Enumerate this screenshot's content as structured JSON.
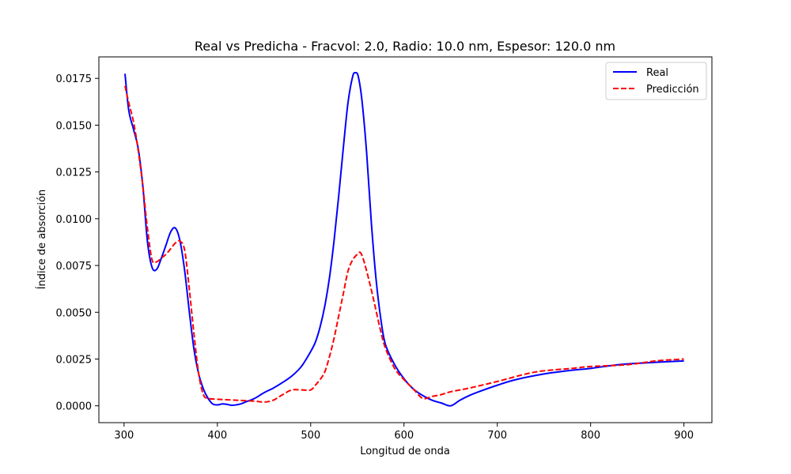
{
  "chart_data": {
    "type": "line",
    "title": "Real vs Predicha - Fracvol: 2.0, Radio: 10.0 nm, Espesor: 120.0 nm",
    "xlabel": "Longitud de onda",
    "ylabel": "Índice de absorción",
    "xlim": [
      273,
      930
    ],
    "ylim": [
      -0.0009,
      0.01865
    ],
    "xticks": [
      300,
      400,
      500,
      600,
      700,
      800,
      900
    ],
    "xtick_labels": [
      "300",
      "400",
      "500",
      "600",
      "700",
      "800",
      "900"
    ],
    "yticks": [
      0,
      0.0025,
      0.005,
      0.0075,
      0.01,
      0.0125,
      0.015,
      0.0175
    ],
    "ytick_labels": [
      "0.0000",
      "0.0025",
      "0.0050",
      "0.0075",
      "0.0100",
      "0.0125",
      "0.0150",
      "0.0175"
    ],
    "grid": false,
    "legend_position": "top-right",
    "series": [
      {
        "name": "Real",
        "color": "#0000ff",
        "style": "solid",
        "x": [
          301,
          305,
          310,
          315,
          320,
          325,
          330,
          335,
          340,
          345,
          350,
          355,
          360,
          365,
          370,
          375,
          380,
          385,
          390,
          395,
          400,
          405,
          410,
          415,
          420,
          425,
          430,
          440,
          450,
          460,
          470,
          480,
          490,
          500,
          505,
          510,
          515,
          520,
          525,
          530,
          535,
          540,
          545,
          548,
          551,
          555,
          560,
          565,
          570,
          575,
          580,
          590,
          600,
          610,
          620,
          630,
          640,
          650,
          660,
          670,
          680,
          700,
          720,
          750,
          780,
          800,
          830,
          860,
          900
        ],
        "y": [
          0.01775,
          0.0158,
          0.0148,
          0.0138,
          0.0118,
          0.0088,
          0.0074,
          0.0073,
          0.0079,
          0.0086,
          0.0093,
          0.0095,
          0.0088,
          0.0072,
          0.005,
          0.003,
          0.0017,
          0.0009,
          0.0004,
          0.0001,
          5e-05,
          0.0001,
          8e-05,
          3e-05,
          5e-05,
          0.0001,
          0.0002,
          0.0004,
          0.0007,
          0.00095,
          0.00125,
          0.0016,
          0.0021,
          0.0029,
          0.0034,
          0.0042,
          0.0053,
          0.0068,
          0.0088,
          0.0112,
          0.0138,
          0.0162,
          0.0176,
          0.0178,
          0.0176,
          0.0163,
          0.0135,
          0.0098,
          0.0068,
          0.0047,
          0.0033,
          0.0022,
          0.00145,
          0.0009,
          0.00055,
          0.0003,
          0.00015,
          0.0,
          0.0003,
          0.00055,
          0.00075,
          0.0011,
          0.0014,
          0.0017,
          0.0019,
          0.002,
          0.0022,
          0.0023,
          0.0024
        ]
      },
      {
        "name": "Predicción",
        "color": "#ff0000",
        "style": "dashed",
        "x": [
          301,
          305,
          310,
          315,
          320,
          325,
          330,
          335,
          340,
          345,
          350,
          355,
          360,
          365,
          370,
          375,
          380,
          385,
          390,
          400,
          420,
          440,
          450,
          460,
          470,
          480,
          490,
          500,
          505,
          510,
          515,
          520,
          525,
          530,
          535,
          540,
          545,
          550,
          553,
          556,
          560,
          565,
          570,
          575,
          580,
          590,
          600,
          610,
          620,
          630,
          640,
          650,
          670,
          700,
          740,
          780,
          800,
          840,
          870,
          900
        ],
        "y": [
          0.0171,
          0.0162,
          0.0152,
          0.0137,
          0.0118,
          0.0095,
          0.0078,
          0.0077,
          0.0079,
          0.0081,
          0.0084,
          0.0087,
          0.0088,
          0.0083,
          0.0062,
          0.0038,
          0.0017,
          0.0006,
          0.0004,
          0.00035,
          0.0003,
          0.00025,
          0.0002,
          0.0003,
          0.0006,
          0.00085,
          0.00085,
          0.00085,
          0.0011,
          0.0014,
          0.0018,
          0.0026,
          0.0036,
          0.0048,
          0.006,
          0.0072,
          0.0078,
          0.0081,
          0.0082,
          0.0079,
          0.0072,
          0.0062,
          0.0051,
          0.004,
          0.0031,
          0.002,
          0.0014,
          0.0009,
          0.0004,
          0.0005,
          0.0006,
          0.00075,
          0.00095,
          0.0013,
          0.0018,
          0.002,
          0.0021,
          0.0022,
          0.0024,
          0.0025
        ]
      }
    ]
  }
}
